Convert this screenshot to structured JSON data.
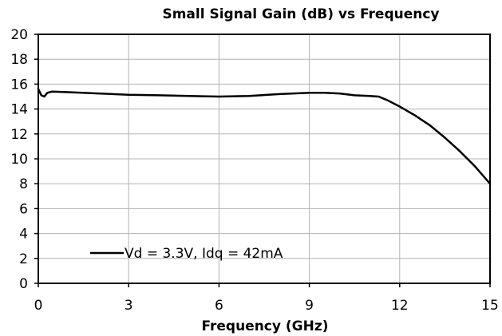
{
  "chart_data": {
    "type": "line",
    "title": "Small Signal Gain (dB) vs Frequency",
    "xlabel": "Frequency (GHz)",
    "ylabel": "",
    "xlim": [
      0,
      15
    ],
    "ylim": [
      0,
      20
    ],
    "xticks": [
      0,
      3,
      6,
      9,
      12,
      15
    ],
    "yticks": [
      0,
      2,
      4,
      6,
      8,
      10,
      12,
      14,
      16,
      18,
      20
    ],
    "grid": true,
    "legend_position": "bottom-left",
    "series": [
      {
        "name": "Vd = 3.3V, Idq = 42mA",
        "color": "#000000",
        "x": [
          0.0,
          0.1,
          0.2,
          0.3,
          0.45,
          1.0,
          2.0,
          3.0,
          4.0,
          5.0,
          6.0,
          7.0,
          8.0,
          9.0,
          9.5,
          10.0,
          10.5,
          11.0,
          11.3,
          11.6,
          12.0,
          12.5,
          13.0,
          13.5,
          14.0,
          14.5,
          15.0
        ],
        "y": [
          15.6,
          15.1,
          15.0,
          15.3,
          15.4,
          15.35,
          15.25,
          15.15,
          15.1,
          15.05,
          15.0,
          15.05,
          15.2,
          15.3,
          15.3,
          15.25,
          15.1,
          15.05,
          15.0,
          14.7,
          14.2,
          13.5,
          12.7,
          11.7,
          10.6,
          9.4,
          8.0
        ]
      }
    ]
  }
}
